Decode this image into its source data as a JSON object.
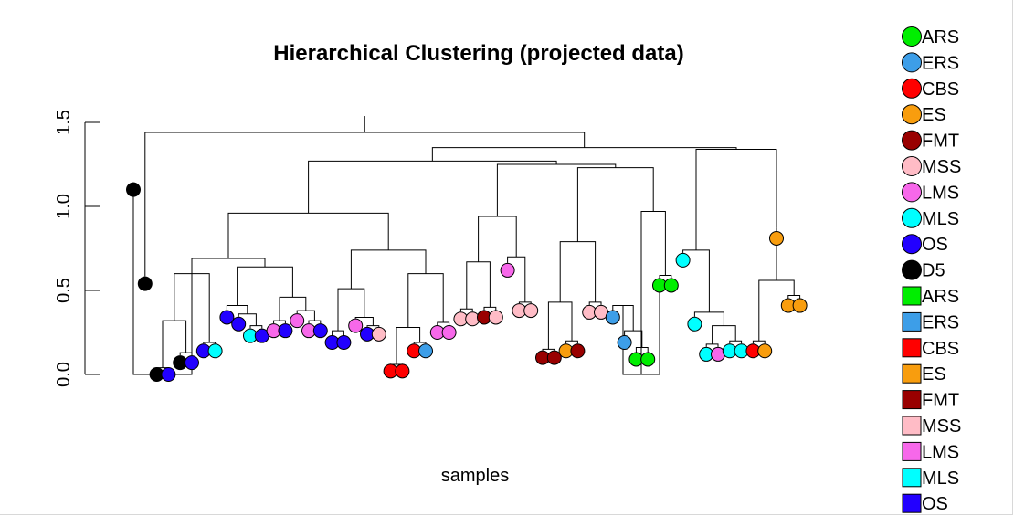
{
  "chart_data": {
    "type": "dendrogram",
    "title": "Hierarchical Clustering (projected data)",
    "xlabel": "samples",
    "ylabel": "",
    "ylim": [
      -0.02,
      1.55
    ],
    "yticks": [
      "0.0",
      "0.5",
      "1.0",
      "1.5"
    ],
    "ytick_values": [
      0.0,
      0.5,
      1.0,
      1.5
    ],
    "leaves": [
      {
        "group": "D5",
        "h": 1.1
      },
      {
        "group": "D5",
        "h": 0.54
      },
      {
        "group": "D5",
        "h": 0.0
      },
      {
        "group": "OS",
        "h": 0.0
      },
      {
        "group": "D5",
        "h": 0.07
      },
      {
        "group": "OS",
        "h": 0.07
      },
      {
        "group": "OS",
        "h": 0.14
      },
      {
        "group": "MLS",
        "h": 0.14
      },
      {
        "group": "OS",
        "h": 0.34
      },
      {
        "group": "OS",
        "h": 0.3
      },
      {
        "group": "MLS",
        "h": 0.23
      },
      {
        "group": "OS",
        "h": 0.23
      },
      {
        "group": "LMS",
        "h": 0.26
      },
      {
        "group": "OS",
        "h": 0.26
      },
      {
        "group": "LMS",
        "h": 0.32
      },
      {
        "group": "LMS",
        "h": 0.26
      },
      {
        "group": "OS",
        "h": 0.26
      },
      {
        "group": "OS",
        "h": 0.19
      },
      {
        "group": "OS",
        "h": 0.19
      },
      {
        "group": "LMS",
        "h": 0.29
      },
      {
        "group": "OS",
        "h": 0.24
      },
      {
        "group": "MSS",
        "h": 0.24
      },
      {
        "group": "CBS",
        "h": 0.02
      },
      {
        "group": "CBS",
        "h": 0.02
      },
      {
        "group": "CBS",
        "h": 0.14
      },
      {
        "group": "ERS",
        "h": 0.14
      },
      {
        "group": "LMS",
        "h": 0.25
      },
      {
        "group": "LMS",
        "h": 0.25
      },
      {
        "group": "MSS",
        "h": 0.33
      },
      {
        "group": "MSS",
        "h": 0.33
      },
      {
        "group": "FMT",
        "h": 0.34
      },
      {
        "group": "MSS",
        "h": 0.34
      },
      {
        "group": "LMS",
        "h": 0.62
      },
      {
        "group": "MSS",
        "h": 0.38
      },
      {
        "group": "MSS",
        "h": 0.38
      },
      {
        "group": "FMT",
        "h": 0.1
      },
      {
        "group": "FMT",
        "h": 0.1
      },
      {
        "group": "ES",
        "h": 0.14
      },
      {
        "group": "FMT",
        "h": 0.14
      },
      {
        "group": "MSS",
        "h": 0.37
      },
      {
        "group": "MSS",
        "h": 0.37
      },
      {
        "group": "ERS",
        "h": 0.34
      },
      {
        "group": "ERS",
        "h": 0.19
      },
      {
        "group": "ARS",
        "h": 0.09
      },
      {
        "group": "ARS",
        "h": 0.09
      },
      {
        "group": "ARS",
        "h": 0.53
      },
      {
        "group": "ARS",
        "h": 0.53
      },
      {
        "group": "MLS",
        "h": 0.68
      },
      {
        "group": "MLS",
        "h": 0.3
      },
      {
        "group": "MLS",
        "h": 0.12
      },
      {
        "group": "LMS",
        "h": 0.12
      },
      {
        "group": "MLS",
        "h": 0.14
      },
      {
        "group": "MLS",
        "h": 0.14
      },
      {
        "group": "CBS",
        "h": 0.14
      },
      {
        "group": "ES",
        "h": 0.14
      },
      {
        "group": "ES",
        "h": 0.81
      },
      {
        "group": "ES",
        "h": 0.41
      },
      {
        "group": "ES",
        "h": 0.41
      }
    ],
    "merges": [
      [
        2,
        3,
        0.04
      ],
      [
        4,
        5,
        0.13
      ],
      [
        -1,
        -2,
        0.32
      ],
      [
        6,
        7,
        0.19
      ],
      [
        -3,
        -4,
        0.6
      ],
      [
        10,
        11,
        0.29
      ],
      [
        9,
        -6,
        0.36
      ],
      [
        8,
        -7,
        0.41
      ],
      [
        12,
        13,
        0.32
      ],
      [
        15,
        16,
        0.32
      ],
      [
        14,
        -10,
        0.38
      ],
      [
        -9,
        -11,
        0.46
      ],
      [
        -8,
        -12,
        0.64
      ],
      [
        -5,
        -13,
        0.69
      ],
      [
        0,
        -5,
        0.0
      ],
      [
        17,
        18,
        0.26
      ],
      [
        20,
        21,
        0.29
      ],
      [
        19,
        -17,
        0.34
      ],
      [
        -16,
        -18,
        0.51
      ],
      [
        22,
        23,
        0.06
      ],
      [
        24,
        25,
        0.19
      ],
      [
        -20,
        -21,
        0.28
      ],
      [
        26,
        27,
        0.31
      ],
      [
        -22,
        -23,
        0.6
      ],
      [
        -19,
        -24,
        0.74
      ],
      [
        -14,
        -25,
        0.96
      ],
      [
        28,
        29,
        0.39
      ],
      [
        30,
        31,
        0.4
      ],
      [
        -27,
        -28,
        0.67
      ],
      [
        33,
        34,
        0.43
      ],
      [
        32,
        -30,
        0.7
      ],
      [
        -29,
        -31,
        0.94
      ],
      [
        35,
        36,
        0.15
      ],
      [
        37,
        38,
        0.2
      ],
      [
        -33,
        -34,
        0.43
      ],
      [
        39,
        40,
        0.43
      ],
      [
        -35,
        -36,
        0.79
      ],
      [
        43,
        44,
        0.16
      ],
      [
        42,
        -38,
        0.26
      ],
      [
        41,
        -39,
        0.41
      ],
      [
        -40,
        45,
        0.0
      ],
      [
        45,
        46,
        0.59
      ],
      [
        -41,
        -42,
        0.97
      ],
      [
        -37,
        -43,
        1.23
      ],
      [
        -32,
        -44,
        1.25
      ],
      [
        -26,
        -45,
        1.27
      ],
      [
        49,
        50,
        0.18
      ],
      [
        51,
        52,
        0.2
      ],
      [
        -47,
        -48,
        0.29
      ],
      [
        48,
        -49,
        0.37
      ],
      [
        47,
        -50,
        0.74
      ],
      [
        53,
        54,
        0.2
      ],
      [
        56,
        57,
        0.47
      ],
      [
        -52,
        -53,
        0.56
      ],
      [
        55,
        -54,
        0.87
      ],
      [
        -51,
        -55,
        1.34
      ],
      [
        -46,
        -56,
        1.35
      ],
      [
        1,
        -57,
        1.44
      ]
    ]
  },
  "groups": {
    "ARS": "#00ee00",
    "ERS": "#3d9ee8",
    "CBS": "#ff0000",
    "ES": "#f89d0e",
    "FMT": "#990000",
    "MSS": "#ffbcc6",
    "LMS": "#f768ea",
    "MLS": "#00ffff",
    "OS": "#2200ff",
    "D5": "#000000"
  },
  "legend": {
    "circles": [
      "ARS",
      "ERS",
      "CBS",
      "ES",
      "FMT",
      "MSS",
      "LMS",
      "MLS",
      "OS",
      "D5"
    ],
    "squares": [
      "ARS",
      "ERS",
      "CBS",
      "ES",
      "FMT",
      "MSS",
      "LMS",
      "MLS",
      "OS"
    ]
  }
}
